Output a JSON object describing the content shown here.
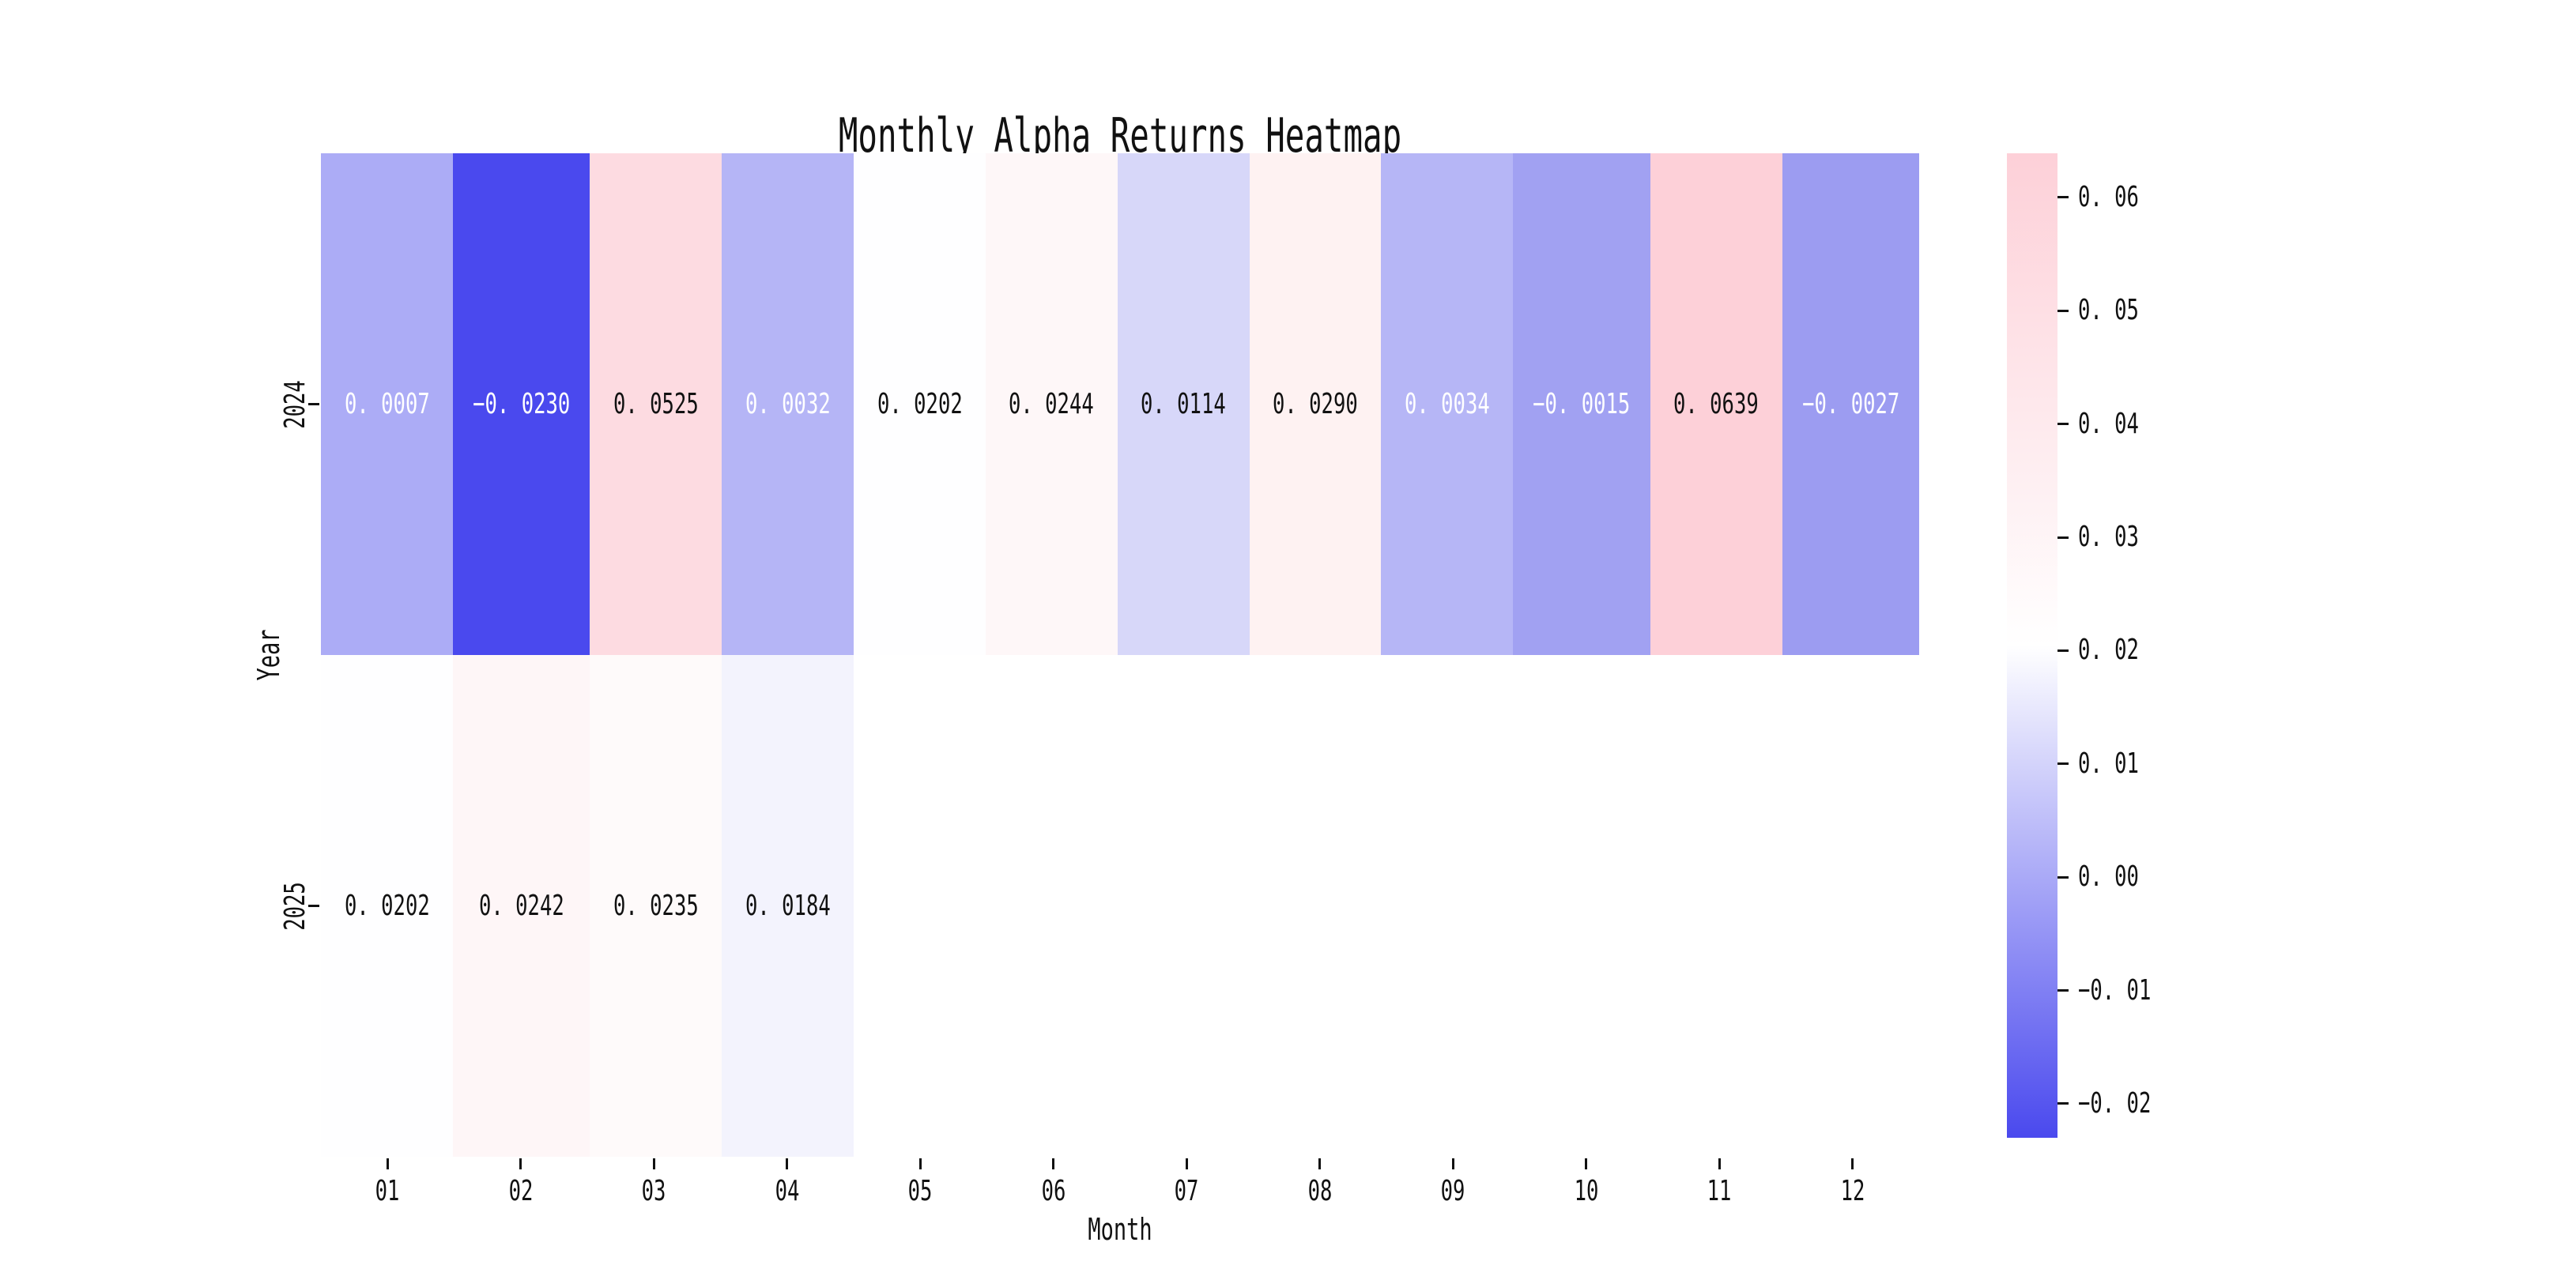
{
  "title": "Monthly Alpha Returns Heatmap",
  "chart_data": {
    "type": "heatmap",
    "title": "Monthly Alpha Returns Heatmap",
    "xlabel": "Month",
    "ylabel": "Year",
    "x_categories": [
      "01",
      "02",
      "03",
      "04",
      "05",
      "06",
      "07",
      "08",
      "09",
      "10",
      "11",
      "12"
    ],
    "y_categories": [
      "2024",
      "2025"
    ],
    "values": [
      [
        0.0007,
        -0.023,
        0.0525,
        0.0032,
        0.0202,
        0.0244,
        0.0114,
        0.029,
        0.0034,
        -0.0015,
        0.0639,
        -0.0027
      ],
      [
        0.0202,
        0.0242,
        0.0235,
        0.0184,
        null,
        null,
        null,
        null,
        null,
        null,
        null,
        null
      ]
    ],
    "value_labels": [
      [
        "0. 0007",
        "−0. 0230",
        "0. 0525",
        "0. 0032",
        "0. 0202",
        "0. 0244",
        "0. 0114",
        "0. 0290",
        "0. 0034",
        "−0. 0015",
        "0. 0639",
        "−0. 0027"
      ],
      [
        "0. 0202",
        "0. 0242",
        "0. 0235",
        "0. 0184",
        "",
        "",
        "",
        "",
        "",
        "",
        "",
        ""
      ]
    ],
    "cell_colors": [
      [
        "#acacf6",
        "#4a49ee",
        "#fddbe1",
        "#b5b5f6",
        "#fefeff",
        "#fef7f8",
        "#d7d7f9",
        "#fef2f2",
        "#b6b6f6",
        "#a1a1f2",
        "#fdd0d8",
        "#9c9cf1"
      ],
      [
        "#fefeff",
        "#fef6f7",
        "#fefafa",
        "#f3f3fd",
        "#ffffff",
        "#ffffff",
        "#ffffff",
        "#ffffff",
        "#ffffff",
        "#ffffff",
        "#ffffff",
        "#ffffff"
      ]
    ],
    "text_colors": [
      [
        "#ffffff",
        "#ffffff",
        "#111111",
        "#ffffff",
        "#111111",
        "#111111",
        "#111111",
        "#111111",
        "#ffffff",
        "#ffffff",
        "#111111",
        "#ffffff"
      ],
      [
        "#111111",
        "#111111",
        "#111111",
        "#111111",
        "",
        "",
        "",
        "",
        "",
        "",
        "",
        ""
      ]
    ],
    "colormap": {
      "low": "#4a49ee",
      "mid": "#ffffff",
      "high": "#fdd0d8"
    },
    "colorbar": {
      "vmin": -0.023,
      "vmax": 0.0639,
      "tick_values": [
        0.06,
        0.05,
        0.04,
        0.03,
        0.02,
        0.01,
        0.0,
        -0.01,
        -0.02
      ],
      "tick_labels": [
        "0. 06",
        "0. 05",
        "0. 04",
        "0. 03",
        "0. 02",
        "0. 01",
        "0. 00",
        "−0. 01",
        "−0. 02"
      ]
    },
    "grid": false,
    "legend": false
  }
}
